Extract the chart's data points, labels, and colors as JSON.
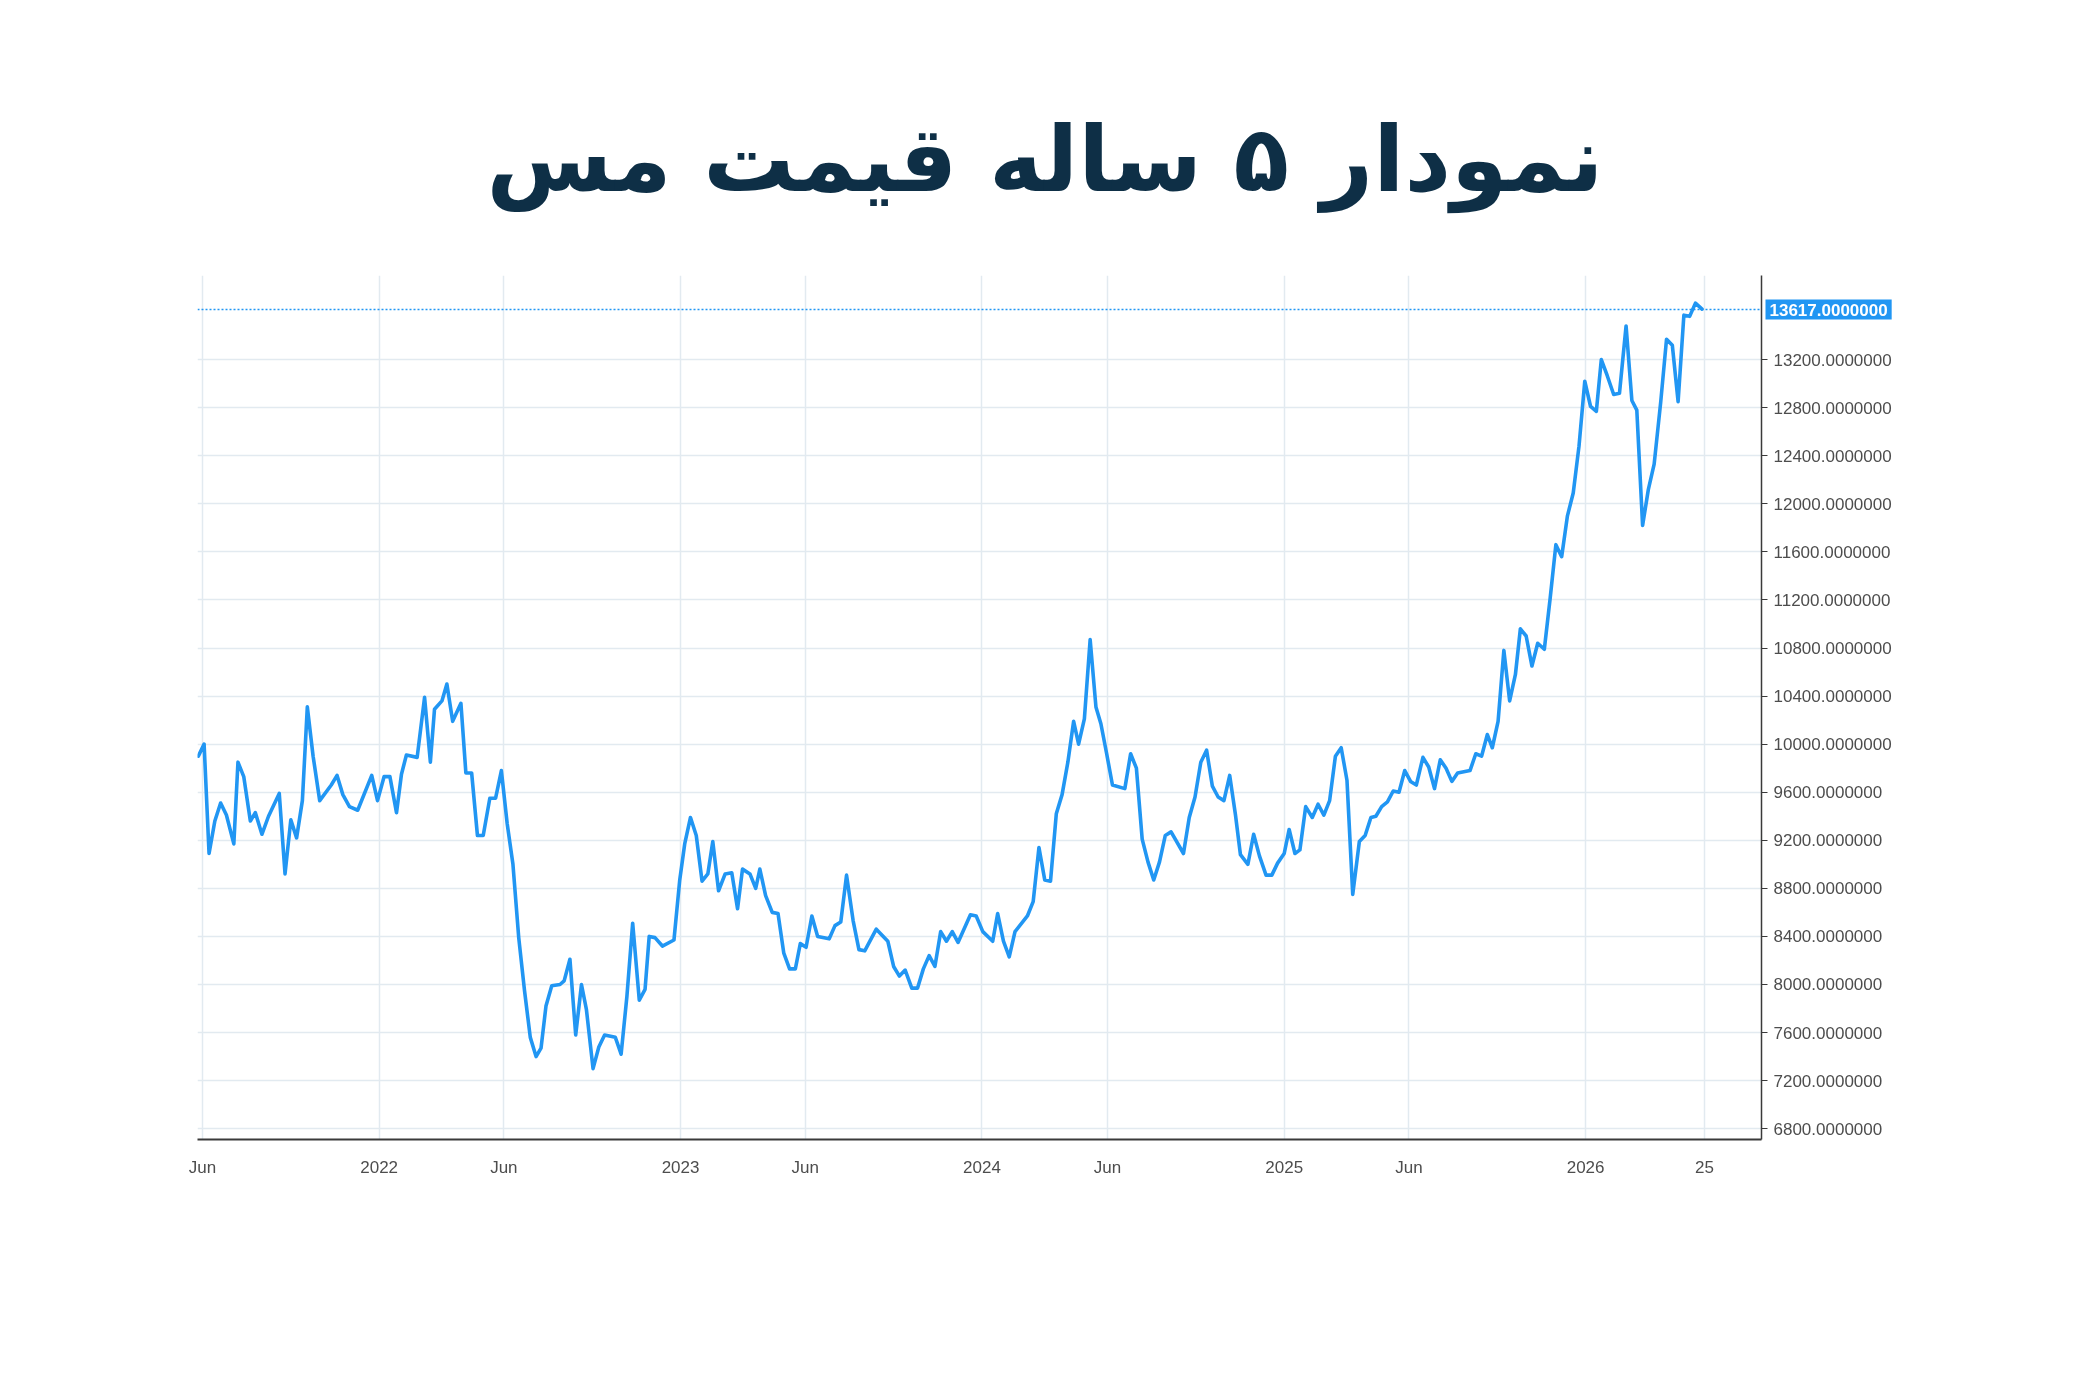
{
  "chart_data": {
    "type": "line",
    "title": "نمودار ۵ ساله قیمت مس",
    "x": [
      "2021-05-27",
      "2021-06-03",
      "2021-06-09",
      "2021-06-16",
      "2021-06-23",
      "2021-06-30",
      "2021-07-09",
      "2021-07-14",
      "2021-07-21",
      "2021-07-29",
      "2021-08-04",
      "2021-08-12",
      "2021-08-20",
      "2021-09-02",
      "2021-09-09",
      "2021-09-16",
      "2021-09-23",
      "2021-09-30",
      "2021-10-06",
      "2021-10-13",
      "2021-10-21",
      "2021-11-04",
      "2021-11-11",
      "2021-11-18",
      "2021-11-26",
      "2021-12-06",
      "2021-12-23",
      "2021-12-30",
      "2022-01-07",
      "2022-01-14",
      "2022-01-22",
      "2022-01-28",
      "2022-02-03",
      "2022-02-16",
      "2022-02-25",
      "2022-03-04",
      "2022-03-09",
      "2022-03-18",
      "2022-03-24",
      "2022-03-31",
      "2022-04-10",
      "2022-04-16",
      "2022-04-23",
      "2022-04-30",
      "2022-05-07",
      "2022-05-15",
      "2022-05-22",
      "2022-05-29",
      "2022-06-05",
      "2022-06-12",
      "2022-06-19",
      "2022-06-26",
      "2022-07-03",
      "2022-07-10",
      "2022-07-16",
      "2022-07-22",
      "2022-07-29",
      "2022-08-08",
      "2022-08-13",
      "2022-08-20",
      "2022-08-27",
      "2022-09-03",
      "2022-09-09",
      "2022-09-17",
      "2022-09-24",
      "2022-10-01",
      "2022-10-14",
      "2022-10-21",
      "2022-10-28",
      "2022-11-04",
      "2022-11-12",
      "2022-11-19",
      "2022-11-24",
      "2022-12-01",
      "2022-12-10",
      "2022-12-24",
      "2022-12-31",
      "2023-01-06",
      "2023-01-13",
      "2023-01-20",
      "2023-01-27",
      "2023-02-03",
      "2023-02-09",
      "2023-02-16",
      "2023-02-24",
      "2023-03-04",
      "2023-03-11",
      "2023-03-17",
      "2023-03-26",
      "2023-04-02",
      "2023-04-07",
      "2023-04-14",
      "2023-04-22",
      "2023-04-29",
      "2023-05-06",
      "2023-05-13",
      "2023-05-20",
      "2023-05-26",
      "2023-06-02",
      "2023-06-09",
      "2023-06-16",
      "2023-06-30",
      "2023-07-07",
      "2023-07-14",
      "2023-07-21",
      "2023-07-29",
      "2023-08-05",
      "2023-08-12",
      "2023-08-26",
      "2023-09-09",
      "2023-09-16",
      "2023-09-23",
      "2023-09-30",
      "2023-10-08",
      "2023-10-15",
      "2023-10-22",
      "2023-10-29",
      "2023-11-05",
      "2023-11-12",
      "2023-11-19",
      "2023-11-26",
      "2023-12-03",
      "2023-12-18",
      "2023-12-25",
      "2024-01-02",
      "2024-01-14",
      "2024-01-20",
      "2024-01-27",
      "2024-02-03",
      "2024-02-10",
      "2024-02-25",
      "2024-03-03",
      "2024-03-10",
      "2024-03-17",
      "2024-03-24",
      "2024-03-31",
      "2024-04-07",
      "2024-04-14",
      "2024-04-21",
      "2024-04-27",
      "2024-05-04",
      "2024-05-11",
      "2024-05-18",
      "2024-05-24",
      "2024-05-31",
      "2024-06-07",
      "2024-06-22",
      "2024-06-29",
      "2024-07-06",
      "2024-07-13",
      "2024-07-20",
      "2024-07-27",
      "2024-08-03",
      "2024-08-10",
      "2024-08-17",
      "2024-09-01",
      "2024-09-08",
      "2024-09-15",
      "2024-09-22",
      "2024-09-29",
      "2024-10-06",
      "2024-10-13",
      "2024-10-20",
      "2024-10-27",
      "2024-11-03",
      "2024-11-09",
      "2024-11-18",
      "2024-11-25",
      "2024-12-02",
      "2024-12-10",
      "2024-12-17",
      "2024-12-24",
      "2025-01-01",
      "2025-01-07",
      "2025-01-14",
      "2025-01-20",
      "2025-01-27",
      "2025-02-04",
      "2025-02-11",
      "2025-02-18",
      "2025-02-25",
      "2025-03-04",
      "2025-03-11",
      "2025-03-18",
      "2025-03-25",
      "2025-04-02",
      "2025-04-09",
      "2025-04-16",
      "2025-04-22",
      "2025-04-29",
      "2025-05-06",
      "2025-05-13",
      "2025-05-20",
      "2025-05-27",
      "2025-06-03",
      "2025-06-10",
      "2025-06-18",
      "2025-06-25",
      "2025-07-02",
      "2025-07-09",
      "2025-07-16",
      "2025-07-23",
      "2025-07-30",
      "2025-08-14",
      "2025-08-21",
      "2025-08-28",
      "2025-09-04",
      "2025-09-10",
      "2025-09-17",
      "2025-09-24",
      "2025-10-01",
      "2025-10-08",
      "2025-10-14",
      "2025-10-21",
      "2025-10-28",
      "2025-11-04",
      "2025-11-12",
      "2025-11-19",
      "2025-11-26",
      "2025-12-03",
      "2025-12-10",
      "2025-12-17",
      "2025-12-24",
      "2025-12-31",
      "2026-01-07",
      "2026-01-14",
      "2026-01-20",
      "2026-01-27",
      "2026-02-04",
      "2026-02-11",
      "2026-02-19",
      "2026-02-26",
      "2026-03-04",
      "2026-03-11",
      "2026-03-18",
      "2026-03-25",
      "2026-04-02",
      "2026-04-09",
      "2026-04-16",
      "2026-04-23",
      "2026-04-30",
      "2026-05-07",
      "2026-05-14",
      "2026-05-22"
    ],
    "series": [
      {
        "color": "#2196f3",
        "values": [
          9900,
          10000,
          9090,
          9360,
          9510,
          9410,
          9170,
          9850,
          9730,
          9360,
          9430,
          9250,
          9400,
          9590,
          8920,
          9370,
          9220,
          9530,
          10310,
          9900,
          9530,
          9660,
          9740,
          9580,
          9480,
          9450,
          9740,
          9530,
          9730,
          9730,
          9430,
          9750,
          9910,
          9890,
          10390,
          9850,
          10290,
          10360,
          10500,
          10190,
          10340,
          9760,
          9760,
          9240,
          9240,
          9550,
          9550,
          9780,
          9340,
          9000,
          8390,
          7950,
          7560,
          7400,
          7470,
          7820,
          7990,
          8000,
          8030,
          8210,
          7580,
          8000,
          7790,
          7300,
          7480,
          7580,
          7560,
          7420,
          7900,
          8510,
          7870,
          7960,
          8400,
          8390,
          8320,
          8370,
          8870,
          9170,
          9390,
          9240,
          8860,
          8920,
          9190,
          8780,
          8920,
          8930,
          8630,
          8960,
          8920,
          8800,
          8960,
          8740,
          8600,
          8590,
          8260,
          8130,
          8130,
          8340,
          8310,
          8570,
          8400,
          8380,
          8490,
          8520,
          8910,
          8530,
          8290,
          8280,
          8460,
          8360,
          8150,
          8070,
          8120,
          7970,
          7970,
          8130,
          8240,
          8150,
          8440,
          8360,
          8440,
          8350,
          8580,
          8570,
          8440,
          8360,
          8590,
          8360,
          8230,
          8440,
          8570,
          8690,
          9140,
          8870,
          8860,
          9420,
          9580,
          9850,
          10190,
          10000,
          10210,
          10870,
          10310,
          10170,
          9920,
          9660,
          9630,
          9920,
          9800,
          9210,
          9020,
          8870,
          9020,
          9240,
          9270,
          9090,
          9390,
          9560,
          9850,
          9950,
          9650,
          9560,
          9530,
          9740,
          9410,
          9080,
          9000,
          9250,
          9070,
          8910,
          8910,
          9010,
          9090,
          9290,
          9090,
          9120,
          9480,
          9390,
          9500,
          9410,
          9530,
          9900,
          9970,
          9700,
          8750,
          9190,
          9240,
          9390,
          9400,
          9480,
          9520,
          9610,
          9600,
          9780,
          9690,
          9660,
          9890,
          9810,
          9630,
          9870,
          9800,
          9690,
          9760,
          9780,
          9920,
          9900,
          10080,
          9970,
          10190,
          10780,
          10360,
          10580,
          10960,
          10900,
          10650,
          10840,
          10790,
          11210,
          11660,
          11560,
          11900,
          12090,
          12480,
          13020,
          12810,
          12770,
          13200,
          13070,
          12910,
          12920,
          13480,
          12860,
          12780,
          11820,
          12120,
          12330,
          12850,
          13370,
          13320,
          12850,
          13570,
          13560,
          13670,
          13620
        ]
      }
    ],
    "xlim": [
      "2021-05-26",
      "2026-08-02"
    ],
    "ylim": [
      6710,
      13900
    ],
    "xticks": [
      {
        "value": "2021-06-01",
        "label": "Jun"
      },
      {
        "value": "2022-01-01",
        "label": "2022"
      },
      {
        "value": "2022-06-01",
        "label": "Jun"
      },
      {
        "value": "2023-01-01",
        "label": "2023"
      },
      {
        "value": "2023-06-01",
        "label": "Jun"
      },
      {
        "value": "2024-01-01",
        "label": "2024"
      },
      {
        "value": "2024-06-01",
        "label": "Jun"
      },
      {
        "value": "2025-01-01",
        "label": "2025"
      },
      {
        "value": "2025-06-01",
        "label": "Jun"
      },
      {
        "value": "2026-01-01",
        "label": "2026"
      },
      {
        "value": "2026-05-25",
        "label": "25"
      }
    ],
    "yticks": [
      {
        "value": 6800,
        "label": "6800.0000000"
      },
      {
        "value": 7200,
        "label": "7200.0000000"
      },
      {
        "value": 7600,
        "label": "7600.0000000"
      },
      {
        "value": 8000,
        "label": "8000.0000000"
      },
      {
        "value": 8400,
        "label": "8400.0000000"
      },
      {
        "value": 8800,
        "label": "8800.0000000"
      },
      {
        "value": 9200,
        "label": "9200.0000000"
      },
      {
        "value": 9600,
        "label": "9600.0000000"
      },
      {
        "value": 10000,
        "label": "10000.0000000"
      },
      {
        "value": 10400,
        "label": "10400.0000000"
      },
      {
        "value": 10800,
        "label": "10800.0000000"
      },
      {
        "value": 11200,
        "label": "11200.0000000"
      },
      {
        "value": 11600,
        "label": "11600.0000000"
      },
      {
        "value": 12000,
        "label": "12000.0000000"
      },
      {
        "value": 12400,
        "label": "12400.0000000"
      },
      {
        "value": 12800,
        "label": "12800.0000000"
      },
      {
        "value": 13200,
        "label": "13200.0000000"
      }
    ],
    "grid": true,
    "ref_lines": [
      {
        "axis": "y",
        "value": 13617,
        "label": "13617.0000000",
        "color": "#2196f3",
        "line_style": "dotted"
      }
    ]
  }
}
